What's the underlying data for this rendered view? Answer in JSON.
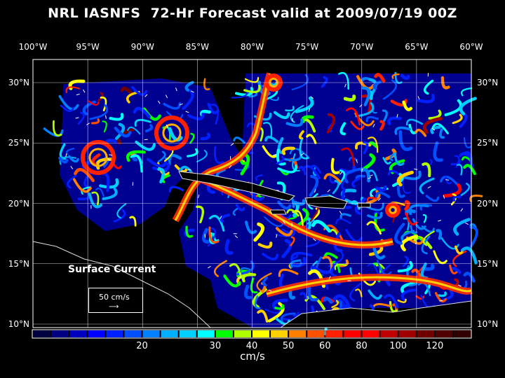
{
  "title": "NRL IASNFS  72-Hr Forecast valid at 2009/07/19 00Z",
  "longitude_labels": [
    {
      "lon": -100,
      "label": "100°W"
    },
    {
      "lon": -95,
      "label": "95°W"
    },
    {
      "lon": -90,
      "label": "90°W"
    },
    {
      "lon": -85,
      "label": "85°W"
    },
    {
      "lon": -80,
      "label": "80°W"
    },
    {
      "lon": -75,
      "label": "75°W"
    },
    {
      "lon": -70,
      "label": "70°W"
    },
    {
      "lon": -65,
      "label": "65°W"
    },
    {
      "lon": -60,
      "label": "60°W"
    }
  ],
  "latitude_labels": [
    {
      "lat": 30,
      "label": "30°N"
    },
    {
      "lat": 25,
      "label": "25°N"
    },
    {
      "lat": 20,
      "label": "20°N"
    },
    {
      "lat": 15,
      "label": "15°N"
    },
    {
      "lat": 10,
      "label": "10°N"
    }
  ],
  "legend": {
    "title": "Surface Current",
    "reference_vector": "50 cm/s",
    "units": "cm/s",
    "colors": [
      "#000040",
      "#000080",
      "#0000c0",
      "#0000ff",
      "#0020ff",
      "#0050ff",
      "#0080ff",
      "#00b0ff",
      "#00d0ff",
      "#00ffff",
      "#00ff00",
      "#b0ff00",
      "#ffff00",
      "#ffd000",
      "#ff8000",
      "#ff5000",
      "#ff2000",
      "#ff0000",
      "#ff0000",
      "#c00000",
      "#a00000",
      "#700000",
      "#500000",
      "#300000"
    ],
    "tick_labels": [
      {
        "boundary": 6,
        "label": "20"
      },
      {
        "boundary": 10,
        "label": "30"
      },
      {
        "boundary": 12,
        "label": "40"
      },
      {
        "boundary": 14,
        "label": "50"
      },
      {
        "boundary": 16,
        "label": "60"
      },
      {
        "boundary": 18,
        "label": "80"
      },
      {
        "boundary": 20,
        "label": "100"
      },
      {
        "boundary": 22,
        "label": "120"
      }
    ]
  }
}
